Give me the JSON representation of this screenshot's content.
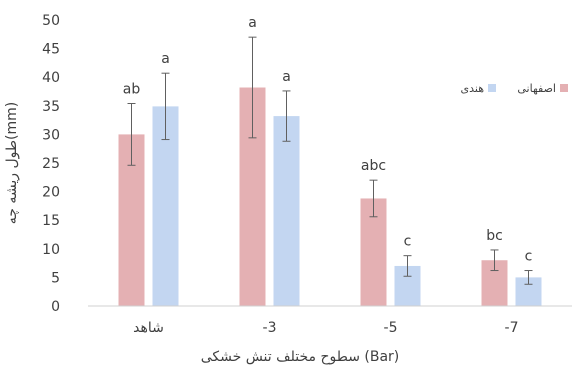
{
  "chart_data": {
    "type": "bar",
    "xlabel": "سطوح مختلف تنش خشکی (Bar)",
    "ylabel": "طول ریشه چه(mm)",
    "ylim": [
      0,
      50
    ],
    "yticks": [
      0,
      5,
      10,
      15,
      20,
      25,
      30,
      35,
      40,
      45,
      50
    ],
    "grid": false,
    "legend_position": "right",
    "categories": [
      "شاهد",
      "-3",
      "-5",
      "-7"
    ],
    "series": [
      {
        "name": "اصفهانی",
        "color": "#E4B0B3",
        "values": [
          30.0,
          38.2,
          18.8,
          8.0
        ],
        "errors": [
          5.4,
          8.8,
          3.2,
          1.8
        ],
        "letters": [
          "ab",
          "a",
          "abc",
          "bc"
        ]
      },
      {
        "name": "هندی",
        "color": "#C3D6F1",
        "values": [
          34.9,
          33.2,
          7.0,
          5.0
        ],
        "errors": [
          5.8,
          4.4,
          1.8,
          1.2
        ],
        "letters": [
          "a",
          "a",
          "c",
          "c"
        ]
      }
    ]
  }
}
